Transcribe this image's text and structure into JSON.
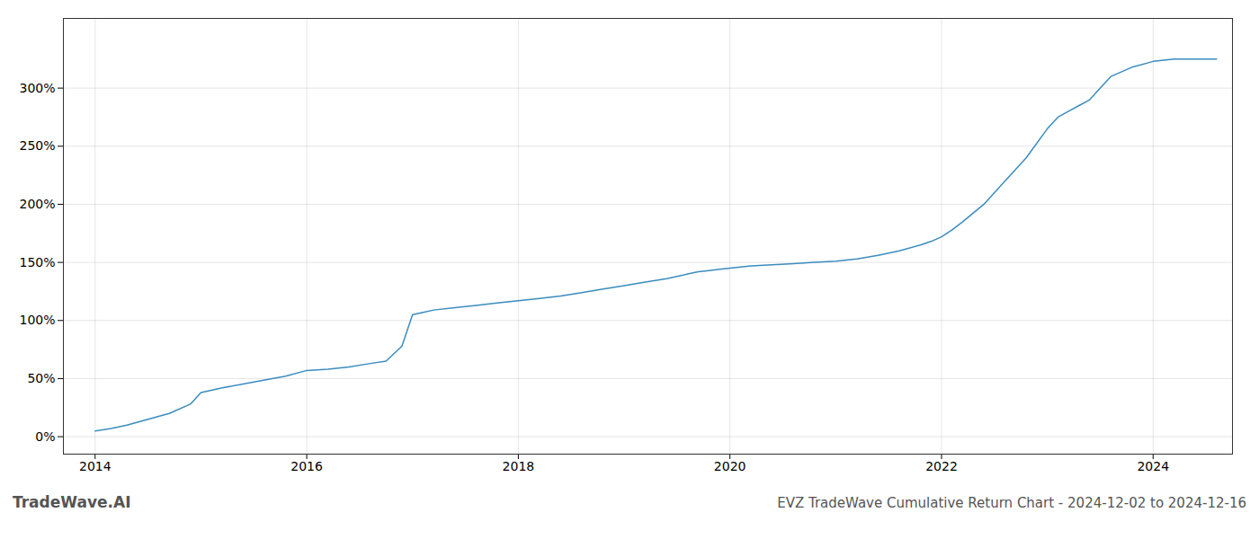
{
  "chart_data": {
    "type": "line",
    "title": "EVZ TradeWave Cumulative Return Chart - 2024-12-02 to 2024-12-16",
    "annotations": [
      "TradeWave.AI"
    ],
    "color": "#3a8cbf",
    "x": [
      2014.0,
      2014.15,
      2014.3,
      2014.5,
      2014.7,
      2014.9,
      2015.0,
      2015.2,
      2015.5,
      2015.8,
      2016.0,
      2016.2,
      2016.4,
      2016.6,
      2016.75,
      2016.9,
      2017.0,
      2017.1,
      2017.2,
      2017.4,
      2017.6,
      2017.8,
      2018.0,
      2018.2,
      2018.4,
      2018.6,
      2018.8,
      2019.0,
      2019.2,
      2019.4,
      2019.6,
      2019.7,
      2019.8,
      2019.9,
      2020.0,
      2020.1,
      2020.2,
      2020.4,
      2020.6,
      2020.8,
      2021.0,
      2021.2,
      2021.4,
      2021.6,
      2021.8,
      2021.9,
      2022.0,
      2022.1,
      2022.2,
      2022.4,
      2022.6,
      2022.8,
      2023.0,
      2023.1,
      2023.2,
      2023.3,
      2023.4,
      2023.5,
      2023.6,
      2023.8,
      2024.0,
      2024.2,
      2024.4,
      2024.6
    ],
    "values": [
      5,
      7,
      10,
      15,
      20,
      28,
      38,
      42,
      47,
      52,
      57,
      58,
      60,
      63,
      65,
      78,
      105,
      107,
      109,
      111,
      113,
      115,
      117,
      119,
      121,
      124,
      127,
      130,
      133,
      136,
      140,
      142,
      143,
      144,
      145,
      146,
      147,
      148,
      149,
      150,
      151,
      153,
      156,
      160,
      165,
      168,
      172,
      178,
      185,
      200,
      220,
      240,
      265,
      275,
      280,
      285,
      290,
      300,
      310,
      318,
      323,
      325,
      325,
      325
    ],
    "xlim": [
      2013.7,
      2024.75
    ],
    "ylim": [
      -15,
      360
    ],
    "xticks": [
      2014,
      2016,
      2018,
      2020,
      2022,
      2024
    ],
    "yticks": [
      {
        "value": 0,
        "label": "0%"
      },
      {
        "value": 50,
        "label": "50%"
      },
      {
        "value": 100,
        "label": "100%"
      },
      {
        "value": 150,
        "label": "150%"
      },
      {
        "value": 200,
        "label": "200%"
      },
      {
        "value": 250,
        "label": "250%"
      },
      {
        "value": 300,
        "label": "300%"
      }
    ],
    "grid": true
  }
}
